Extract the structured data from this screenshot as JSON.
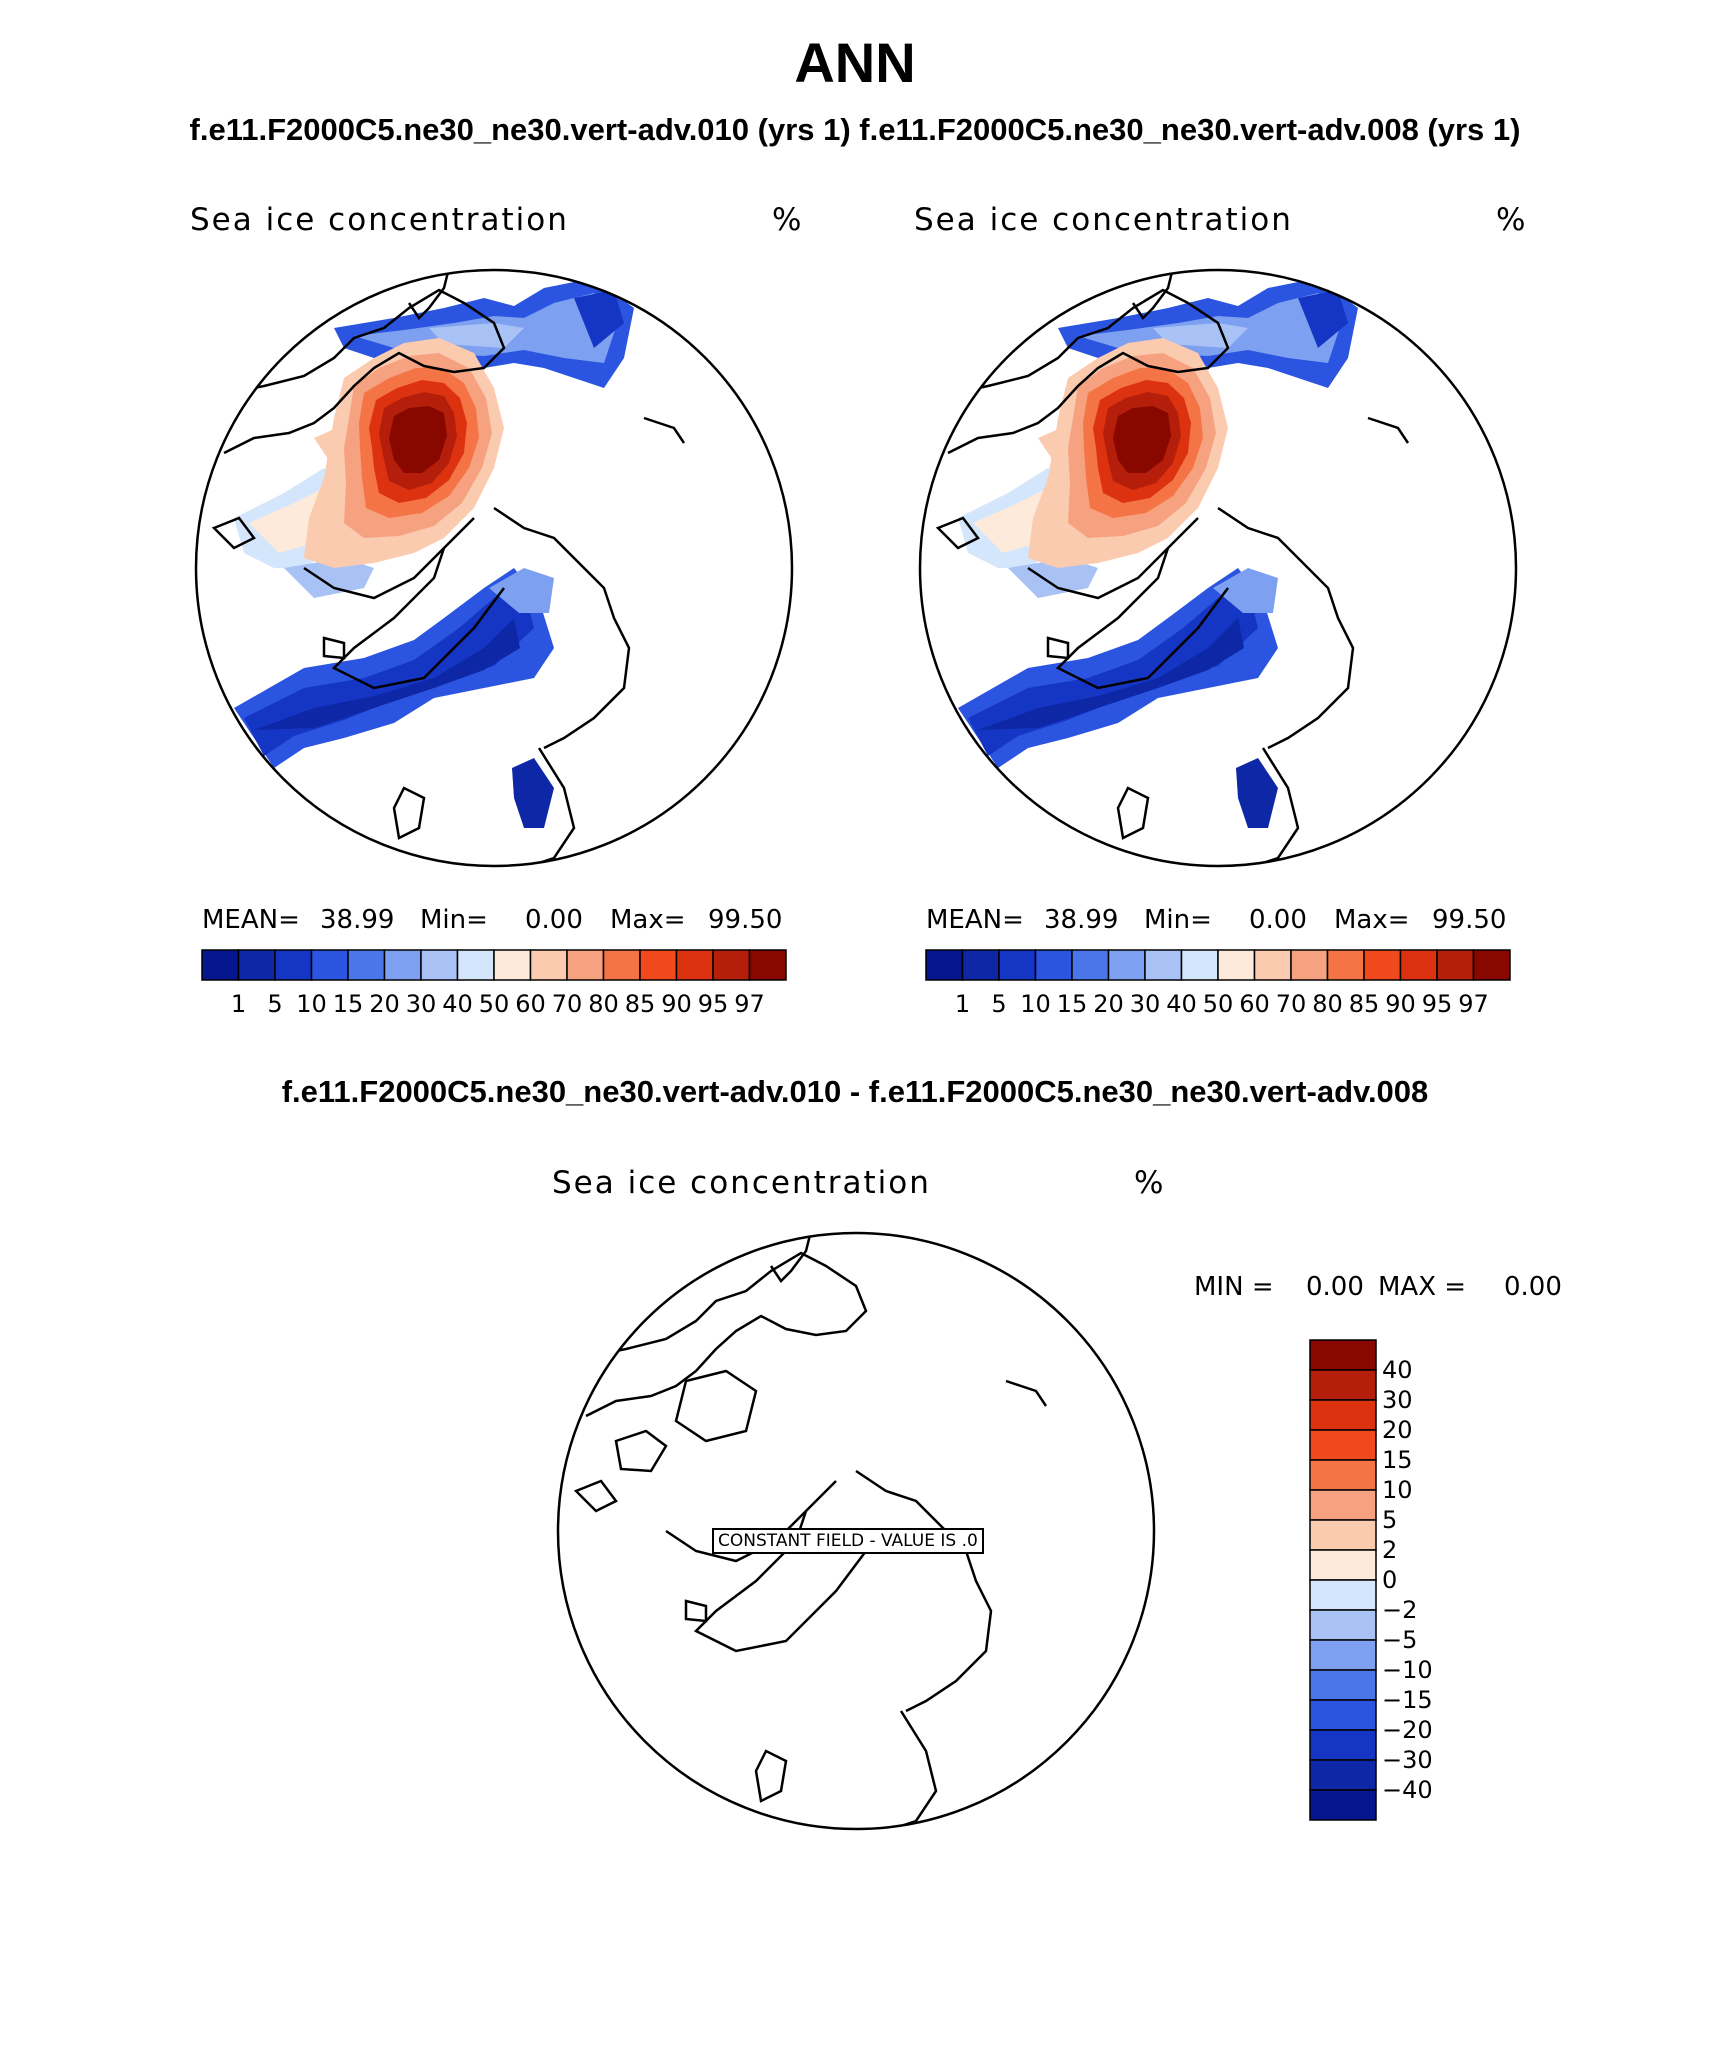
{
  "page": {
    "title": "ANN",
    "run_titles": "f.e11.F2000C5.ne30_ne30.vert-adv.010 (yrs 1) f.e11.F2000C5.ne30_ne30.vert-adv.008 (yrs 1)",
    "diff_title": "f.e11.F2000C5.ne30_ne30.vert-adv.010 - f.e11.F2000C5.ne30_ne30.vert-adv.008"
  },
  "panels": [
    {
      "variable": "Sea ice concentration",
      "units": "%",
      "mean_label": "MEAN=",
      "mean": "38.99",
      "min_label": "Min=",
      "min": "0.00",
      "max_label": "Max=",
      "max": "99.50"
    },
    {
      "variable": "Sea ice concentration",
      "units": "%",
      "mean_label": "MEAN=",
      "mean": "38.99",
      "min_label": "Min=",
      "min": "0.00",
      "max_label": "Max=",
      "max": "99.50"
    }
  ],
  "diff_panel": {
    "variable": "Sea ice concentration",
    "units": "%",
    "min_label": "MIN =",
    "min": "0.00",
    "max_label": "MAX =",
    "max": "0.00",
    "constant_field_label": "CONSTANT FIELD - VALUE IS .0"
  },
  "colorbar_levels": [
    "1",
    "5",
    "10",
    "15",
    "20",
    "30",
    "40",
    "50",
    "60",
    "70",
    "80",
    "85",
    "90",
    "95",
    "97"
  ],
  "colorbar_colors": [
    "#05168f",
    "#0d27a6",
    "#1536c4",
    "#2b55e0",
    "#4b76ea",
    "#7ea0f0",
    "#a9c2f6",
    "#d4e6fb",
    "#fdeadb",
    "#fbcbb0",
    "#f6a281",
    "#f47446",
    "#f04a1c",
    "#dc3210",
    "#b41e0a",
    "#880800"
  ],
  "diff_levels": [
    "40",
    "30",
    "20",
    "15",
    "10",
    "5",
    "2",
    "0",
    "−2",
    "−5",
    "−10",
    "−15",
    "−20",
    "−30",
    "−40"
  ],
  "diff_colors": [
    "#880800",
    "#b41e0a",
    "#dc3210",
    "#f04a1c",
    "#f47446",
    "#f6a281",
    "#fbcbb0",
    "#fdeadb",
    "#d4e6fb",
    "#a9c2f6",
    "#7ea0f0",
    "#4b76ea",
    "#2b55e0",
    "#1536c4",
    "#0d27a6",
    "#05168f"
  ]
}
